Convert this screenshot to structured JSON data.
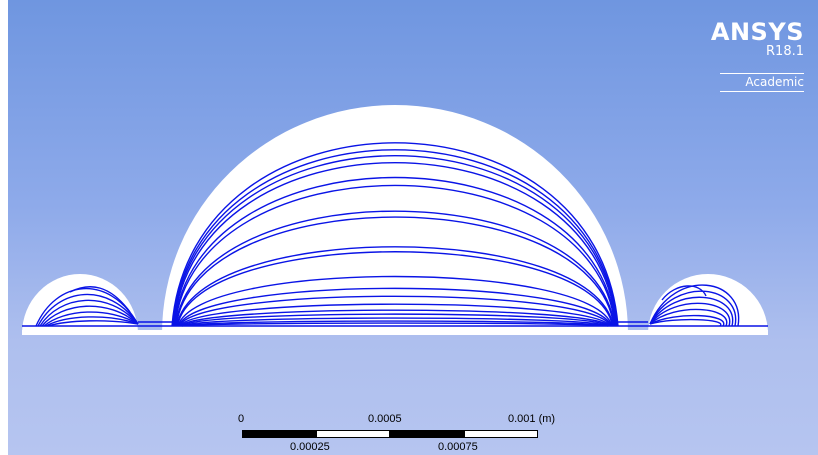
{
  "branding": {
    "name": "ANSYS",
    "version": "R18.1",
    "edition": "Academic"
  },
  "scale_bar": {
    "labels_top": [
      "0",
      "0.0005",
      "0.001 (m)"
    ],
    "labels_bottom": [
      "0.00025",
      "0.00075"
    ]
  },
  "colors": {
    "streamline": "#0a14e6",
    "background_top": "#6f96e0",
    "background_bottom": "#b6c5f0",
    "domain_fill": "#ffffff"
  },
  "scene": {
    "small_bubble_count": 2,
    "large_bubble_count": 1
  }
}
